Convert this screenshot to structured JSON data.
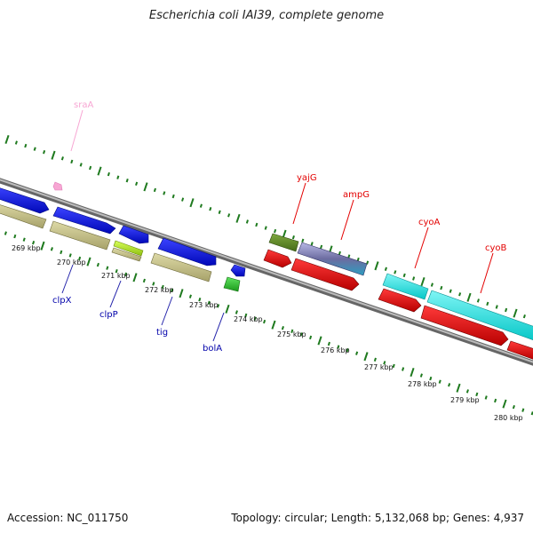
{
  "title": "Escherichia coli IAI39, complete genome",
  "footer": {
    "accession": "Accession: NC_011750",
    "summary": "Topology: circular; Length: 5,132,068 bp; Genes: 4,937"
  },
  "colors": {
    "backbone": "#8c8c8c",
    "ticks": "#1f7a1f",
    "blue": "#0b13e0",
    "olive": "#c7c38a",
    "red": "#e30000",
    "cyan": "#12e5e5",
    "green": "#2fbf2f",
    "lime": "#b4e61e",
    "pink": "#f7a6d3",
    "darkolive": "#5b8a25",
    "slate": "#8686b8"
  },
  "scale_labels": [
    "269 kbp",
    "270 kbp",
    "271 kbp",
    "272 kbp",
    "273 kbp",
    "274 kbp",
    "275 kbp",
    "276 kbp",
    "277 kbp",
    "278 kbp",
    "279 kbp",
    "280 kbp"
  ],
  "genes": [
    {
      "name": "sraA",
      "color": "pink"
    },
    {
      "name": "clpX",
      "color": "blue"
    },
    {
      "name": "clpP",
      "color": "blue"
    },
    {
      "name": "tig",
      "color": "blue"
    },
    {
      "name": "bolA",
      "color": "blue"
    },
    {
      "name": "yajG",
      "color": "red"
    },
    {
      "name": "ampG",
      "color": "red"
    },
    {
      "name": "cyoA",
      "color": "red"
    },
    {
      "name": "cyoB",
      "color": "red"
    }
  ]
}
